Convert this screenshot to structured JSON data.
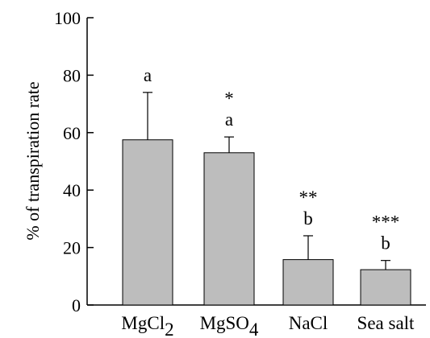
{
  "chart_data": {
    "type": "bar",
    "title": "",
    "xlabel": "",
    "ylabel": "% of transpiration rate",
    "ylim": [
      0,
      100
    ],
    "yticks": [
      0,
      20,
      40,
      60,
      80,
      100
    ],
    "grid": false,
    "bar_color": "#bdbdbd",
    "categories": [
      {
        "base": "MgCl",
        "sub": "2"
      },
      {
        "base": "MgSO",
        "sub": "4"
      },
      {
        "base": "NaCl",
        "sub": ""
      },
      {
        "base": "Sea salt",
        "sub": ""
      }
    ],
    "values": [
      57.5,
      53.0,
      15.8,
      12.3
    ],
    "errors": [
      16.5,
      5.5,
      8.3,
      3.2
    ],
    "significance": [
      "",
      "*",
      "**",
      "***"
    ],
    "groups": [
      "a",
      "a",
      "b",
      "b"
    ]
  }
}
